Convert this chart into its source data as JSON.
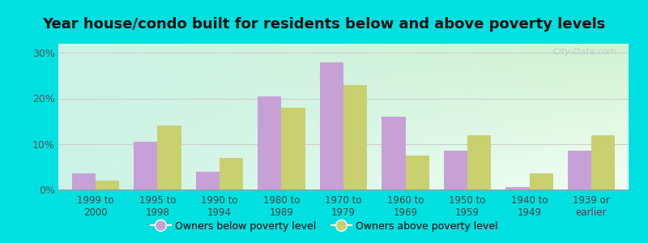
{
  "title": "Year house/condo built for residents below and above poverty levels",
  "categories": [
    "1999 to\n2000",
    "1995 to\n1998",
    "1990 to\n1994",
    "1980 to\n1989",
    "1970 to\n1979",
    "1960 to\n1969",
    "1950 to\n1959",
    "1940 to\n1949",
    "1939 or\nearlier"
  ],
  "below_poverty": [
    3.5,
    10.5,
    4.0,
    20.5,
    28.0,
    16.0,
    8.5,
    0.5,
    8.5
  ],
  "above_poverty": [
    2.0,
    14.0,
    7.0,
    18.0,
    23.0,
    7.5,
    12.0,
    3.5,
    12.0
  ],
  "below_color": "#c8a0d8",
  "above_color": "#c8d070",
  "outer_bg": "#00e0e0",
  "ylabel_ticks": [
    "0%",
    "10%",
    "20%",
    "30%"
  ],
  "yticks": [
    0,
    10,
    20,
    30
  ],
  "ylim": [
    0,
    32
  ],
  "legend_below": "Owners below poverty level",
  "legend_above": "Owners above poverty level",
  "title_fontsize": 13,
  "bar_width": 0.38,
  "grid_color": "#cccccc",
  "watermark": "City-Data.com"
}
